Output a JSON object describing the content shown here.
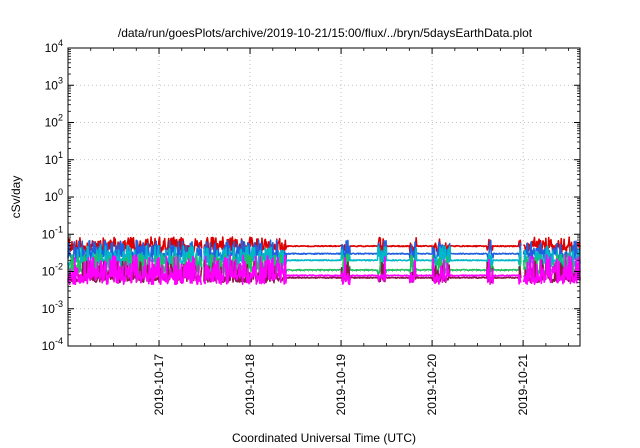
{
  "chart_data": {
    "type": "line",
    "title": "/data/run/goesPlots/archive/2019-10-21/15:00/flux/../bryn/5daysEarthData.plot",
    "xlabel": "Coordinated Universal Time (UTC)",
    "ylabel": "cSv/day",
    "yscale": "log",
    "ylim": [
      0.0001,
      10000
    ],
    "y_ticks": [
      {
        "base": "10",
        "exp": "-4"
      },
      {
        "base": "10",
        "exp": "-3"
      },
      {
        "base": "10",
        "exp": "-2"
      },
      {
        "base": "10",
        "exp": "-1"
      },
      {
        "base": "10",
        "exp": "0"
      },
      {
        "base": "10",
        "exp": "1"
      },
      {
        "base": "10",
        "exp": "2"
      },
      {
        "base": "10",
        "exp": "3"
      },
      {
        "base": "10",
        "exp": "4"
      }
    ],
    "x_start": "2019-10-16 00:00",
    "x_end": "2019-10-21 15:00",
    "xlim_days": [
      0,
      5.625
    ],
    "x_ticks": [
      {
        "label": "2019-10-17",
        "day": 1
      },
      {
        "label": "2019-10-18",
        "day": 2
      },
      {
        "label": "2019-10-19",
        "day": 3
      },
      {
        "label": "2019-10-20",
        "day": 4
      },
      {
        "label": "2019-10-21",
        "day": 5
      }
    ],
    "grid": true,
    "series": [
      {
        "color": "#dd0000",
        "base": 0.048,
        "lo": 0.032,
        "hi": 0.085,
        "seed": 11
      },
      {
        "color": "#2060e0",
        "base": 0.03,
        "lo": 0.018,
        "hi": 0.07,
        "seed": 23
      },
      {
        "color": "#00b8c8",
        "base": 0.02,
        "lo": 0.013,
        "hi": 0.05,
        "seed": 37
      },
      {
        "color": "#20c060",
        "base": 0.011,
        "lo": 0.008,
        "hi": 0.03,
        "seed": 41
      },
      {
        "color": "#8b1a4a",
        "base": 0.0068,
        "lo": 0.005,
        "hi": 0.02,
        "seed": 53
      },
      {
        "color": "#ff00ff",
        "base": 0.0078,
        "lo": 0.0045,
        "hi": 0.028,
        "seed": 67
      }
    ],
    "quiet_segments_days": [
      [
        2.4,
        3.0
      ],
      [
        3.1,
        3.4
      ],
      [
        3.5,
        3.75
      ],
      [
        3.83,
        4.0
      ],
      [
        4.2,
        4.6
      ],
      [
        4.67,
        4.95
      ]
    ],
    "data_gaps_days": [
      [
        1.47,
        1.49
      ],
      [
        4.98,
        5.0
      ]
    ]
  }
}
